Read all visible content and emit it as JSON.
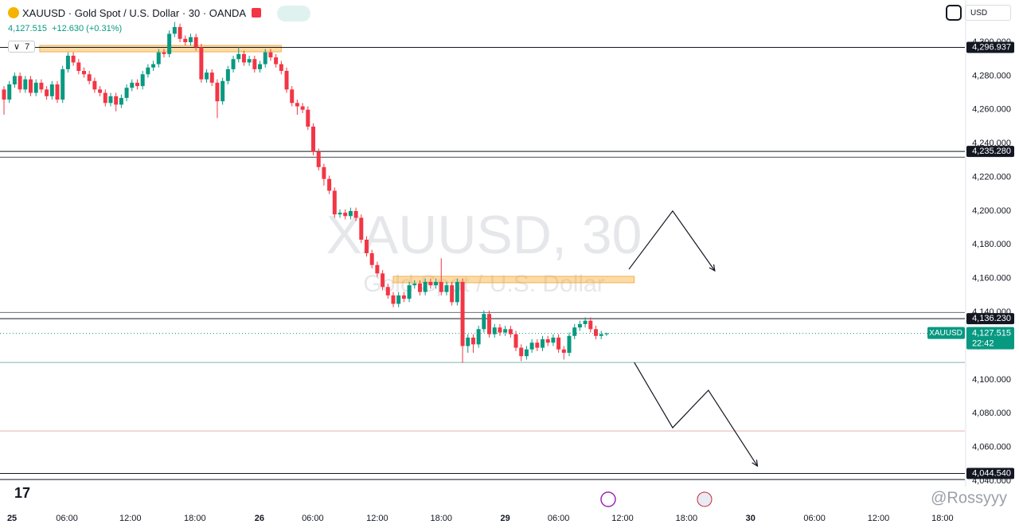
{
  "header": {
    "symbol_line": "XAUUSD · Gold Spot / U.S. Dollar · 30 · OANDA",
    "price": "4,127.515",
    "change": "+12.630 (+0.31%)",
    "count": "7",
    "currency": "USD"
  },
  "watermark": {
    "title": "XAUUSD, 30",
    "subtitle": "Gold Spot / U.S. Dollar",
    "credit": "@Rossyyy"
  },
  "chart_data": {
    "type": "candlestick",
    "colors": {
      "up": "#089981",
      "down": "#f23645"
    },
    "open": [
      4272,
      4266,
      4275,
      4280,
      4272,
      4278,
      4270,
      4276,
      4272,
      4268,
      4275,
      4266,
      4284,
      4292,
      4288,
      4283,
      4281,
      4277,
      4272,
      4270,
      4264,
      4268,
      4263,
      4267,
      4273,
      4276,
      4274,
      4281,
      4285,
      4287,
      4294,
      4293,
      4305,
      4309,
      4302,
      4300,
      4303,
      4297,
      4278,
      4282,
      4276,
      4265,
      4277,
      4284,
      4290,
      4293,
      4288,
      4290,
      4284,
      4287,
      4294,
      4291,
      4287,
      4283,
      4272,
      4264,
      4262,
      4260,
      4250,
      4235,
      4226,
      4219,
      4212,
      4198,
      4199,
      4197,
      4200,
      4196,
      4183,
      4175,
      4168,
      4163,
      4155,
      4150,
      4145,
      4150,
      4148,
      4156,
      4157,
      4152,
      4158,
      4156,
      4158,
      4152,
      4156,
      4146,
      4158,
      4120,
      4125,
      4121,
      4130,
      4139,
      4127,
      4131,
      4128,
      4130,
      4127,
      4119,
      4114,
      4118,
      4122,
      4119,
      4124,
      4122,
      4125,
      4118,
      4116,
      4126,
      4131,
      4133,
      4135,
      4130,
      4126,
      4127
    ],
    "high": [
      4274,
      4277,
      4282,
      4282,
      4280,
      4280,
      4278,
      4278,
      4274,
      4277,
      4277,
      4286,
      4294,
      4294,
      4290,
      4285,
      4283,
      4279,
      4274,
      4272,
      4270,
      4270,
      4269,
      4275,
      4278,
      4278,
      4283,
      4287,
      4289,
      4296,
      4296,
      4307,
      4312,
      4311,
      4304,
      4305,
      4305,
      4299,
      4284,
      4284,
      4278,
      4279,
      4286,
      4292,
      4297,
      4295,
      4292,
      4292,
      4289,
      4296,
      4296,
      4293,
      4289,
      4285,
      4274,
      4266,
      4264,
      4262,
      4252,
      4237,
      4228,
      4221,
      4214,
      4201,
      4201,
      4202,
      4202,
      4198,
      4185,
      4177,
      4170,
      4165,
      4157,
      4152,
      4152,
      4152,
      4158,
      4159,
      4159,
      4160,
      4160,
      4160,
      4172,
      4158,
      4158,
      4160,
      4160,
      4127,
      4127,
      4132,
      4141,
      4141,
      4133,
      4133,
      4132,
      4132,
      4129,
      4121,
      4120,
      4124,
      4124,
      4126,
      4126,
      4127,
      4127,
      4120,
      4128,
      4133,
      4135,
      4137,
      4137,
      4132,
      4129,
      4128
    ],
    "low": [
      4257,
      4264,
      4273,
      4270,
      4270,
      4268,
      4268,
      4270,
      4266,
      4266,
      4264,
      4264,
      4282,
      4286,
      4281,
      4279,
      4275,
      4270,
      4268,
      4262,
      4262,
      4259,
      4261,
      4265,
      4271,
      4272,
      4272,
      4279,
      4283,
      4285,
      4291,
      4291,
      4303,
      4300,
      4298,
      4298,
      4295,
      4276,
      4276,
      4274,
      4255,
      4263,
      4275,
      4282,
      4288,
      4286,
      4286,
      4282,
      4282,
      4285,
      4289,
      4285,
      4281,
      4270,
      4262,
      4257,
      4258,
      4248,
      4233,
      4224,
      4215,
      4210,
      4196,
      4196,
      4195,
      4195,
      4194,
      4181,
      4173,
      4166,
      4161,
      4153,
      4148,
      4143,
      4143,
      4146,
      4146,
      4154,
      4150,
      4150,
      4154,
      4154,
      4150,
      4150,
      4144,
      4144,
      4110,
      4116,
      4116,
      4119,
      4128,
      4125,
      4125,
      4126,
      4126,
      4125,
      4117,
      4111,
      4112,
      4116,
      4117,
      4117,
      4120,
      4120,
      4116,
      4112,
      4114,
      4124,
      4129,
      4131,
      4128,
      4124,
      4124,
      4126
    ],
    "close": [
      4266,
      4275,
      4280,
      4272,
      4278,
      4270,
      4276,
      4272,
      4268,
      4275,
      4266,
      4284,
      4292,
      4288,
      4283,
      4281,
      4277,
      4272,
      4270,
      4264,
      4268,
      4263,
      4267,
      4273,
      4276,
      4274,
      4281,
      4285,
      4287,
      4294,
      4293,
      4305,
      4309,
      4302,
      4300,
      4303,
      4297,
      4278,
      4282,
      4276,
      4265,
      4277,
      4284,
      4290,
      4293,
      4288,
      4290,
      4284,
      4287,
      4294,
      4291,
      4287,
      4283,
      4272,
      4264,
      4262,
      4260,
      4250,
      4235,
      4226,
      4219,
      4212,
      4198,
      4199,
      4197,
      4200,
      4196,
      4183,
      4175,
      4168,
      4163,
      4155,
      4150,
      4145,
      4150,
      4148,
      4156,
      4157,
      4152,
      4158,
      4156,
      4158,
      4152,
      4156,
      4146,
      4158,
      4120,
      4125,
      4121,
      4130,
      4139,
      4127,
      4131,
      4128,
      4130,
      4127,
      4119,
      4114,
      4118,
      4122,
      4119,
      4124,
      4122,
      4125,
      4118,
      4116,
      4126,
      4131,
      4133,
      4135,
      4130,
      4126,
      4127,
      4127.515
    ],
    "xlim": [
      -0.75,
      180.2
    ],
    "xticks": [
      {
        "value": 1.5,
        "label": "25"
      },
      {
        "value": 11.8,
        "label": "06:00"
      },
      {
        "value": 23.7,
        "label": "12:00"
      },
      {
        "value": 35.8,
        "label": "18:00"
      },
      {
        "value": 47.9,
        "label": "26"
      },
      {
        "value": 57.9,
        "label": "06:00"
      },
      {
        "value": 70,
        "label": "12:00"
      },
      {
        "value": 82,
        "label": "18:00"
      },
      {
        "value": 94,
        "label": "29"
      },
      {
        "value": 104,
        "label": "06:00"
      },
      {
        "value": 116,
        "label": "12:00"
      },
      {
        "value": 128,
        "label": "18:00"
      },
      {
        "value": 140,
        "label": "30"
      },
      {
        "value": 152,
        "label": "06:00"
      },
      {
        "value": 164,
        "label": "12:00"
      },
      {
        "value": 176,
        "label": "18:00"
      }
    ],
    "ylim": [
      4037.2,
      4325
    ],
    "yticks": [
      {
        "value": 4040,
        "label": "4,040.000"
      },
      {
        "value": 4060,
        "label": "4,060.000"
      },
      {
        "value": 4080,
        "label": "4,080.000"
      },
      {
        "value": 4100,
        "label": "4,100.000"
      },
      {
        "value": 4120,
        "label": "4,120.000"
      },
      {
        "value": 4140,
        "label": "4,140.000"
      },
      {
        "value": 4160,
        "label": "4,160.000"
      },
      {
        "value": 4180,
        "label": "4,180.000"
      },
      {
        "value": 4200,
        "label": "4,200.000"
      },
      {
        "value": 4220,
        "label": "4,220.000"
      },
      {
        "value": 4240,
        "label": "4,240.000"
      },
      {
        "value": 4260,
        "label": "4,260.000"
      },
      {
        "value": 4280,
        "label": "4,280.000"
      },
      {
        "value": 4300,
        "label": "4,300.000"
      }
    ],
    "levels": [
      {
        "value": 4296.937,
        "label": "4,296.937",
        "color": "#131722"
      },
      {
        "value": 4235.28,
        "label": "4,235.280",
        "color": "#131722"
      },
      {
        "value": 4231.9,
        "color": "#4a4f5c"
      },
      {
        "value": 4139.9,
        "color": "#6a6f7c"
      },
      {
        "value": 4136.23,
        "label": "4,136.230",
        "color": "#131722"
      },
      {
        "value": 4110.3,
        "color": "#7fb8b0"
      },
      {
        "value": 4069.7,
        "color": "#e3b0b0"
      },
      {
        "value": 4044.54,
        "label": "4,044.540",
        "color": "#131722"
      },
      {
        "value": 4040.9,
        "color": "#131722"
      }
    ],
    "zones": [
      {
        "x": [
          6.7,
          52
        ],
        "y": [
          4294.3,
          4298.1
        ]
      },
      {
        "x": [
          73,
          118.2
        ],
        "y": [
          4157.5,
          4161.3
        ]
      }
    ],
    "arrows": [
      {
        "x": [
          117.2,
          125.4,
          133.3
        ],
        "y": [
          4165.5,
          4200,
          4164.6
        ]
      },
      {
        "x": [
          118.2,
          125.4,
          132.1,
          141.3
        ],
        "y": [
          4110.3,
          4071.6,
          4093.8,
          4048.9
        ]
      }
    ],
    "last": {
      "tag": "XAUUSD",
      "price_label": "4,127.515",
      "countdown": "22:42",
      "color": "#089981"
    }
  }
}
